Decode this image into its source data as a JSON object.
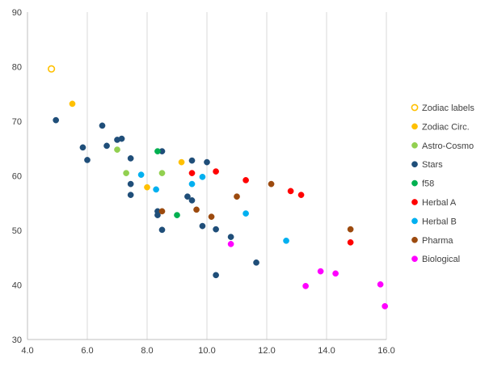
{
  "chart_data": {
    "type": "scatter",
    "title": "",
    "xlabel": "",
    "ylabel": "",
    "xlim": [
      4.0,
      16.0
    ],
    "ylim": [
      30,
      90
    ],
    "xticks": [
      "4.0",
      "6.0",
      "8.0",
      "10.0",
      "12.0",
      "14.0",
      "16.0"
    ],
    "yticks": [
      "30",
      "40",
      "50",
      "60",
      "70",
      "80",
      "90"
    ],
    "grid": "vertical gridlines",
    "legend_position": "right",
    "series": [
      {
        "name": "Zodiac labels",
        "color": "#FFC000",
        "marker": "hollow-circle",
        "points": [
          [
            4.8,
            79.6
          ]
        ]
      },
      {
        "name": "Zodiac Circ.",
        "color": "#FFC000",
        "marker": "circle",
        "points": [
          [
            5.5,
            73.2
          ],
          [
            8.0,
            57.9
          ],
          [
            9.15,
            62.5
          ]
        ]
      },
      {
        "name": "Astro-Cosmo",
        "color": "#92D050",
        "marker": "circle",
        "points": [
          [
            7.0,
            64.8
          ],
          [
            7.3,
            60.5
          ],
          [
            8.5,
            60.5
          ]
        ]
      },
      {
        "name": "Stars",
        "color": "#1F4E79",
        "marker": "circle",
        "points": [
          [
            4.95,
            70.2
          ],
          [
            5.85,
            65.2
          ],
          [
            6.0,
            62.9
          ],
          [
            6.5,
            69.2
          ],
          [
            6.65,
            65.5
          ],
          [
            7.0,
            66.6
          ],
          [
            7.15,
            66.8
          ],
          [
            7.45,
            63.2
          ],
          [
            7.45,
            58.5
          ],
          [
            7.45,
            56.5
          ],
          [
            8.35,
            53.5
          ],
          [
            8.35,
            52.8
          ],
          [
            8.5,
            64.5
          ],
          [
            8.5,
            50.1
          ],
          [
            9.35,
            56.2
          ],
          [
            9.5,
            62.8
          ],
          [
            9.5,
            55.5
          ],
          [
            9.85,
            50.8
          ],
          [
            10.0,
            62.5
          ],
          [
            10.3,
            50.2
          ],
          [
            10.3,
            41.8
          ],
          [
            10.8,
            48.8
          ],
          [
            11.65,
            44.1
          ]
        ]
      },
      {
        "name": "f58",
        "color": "#00B050",
        "marker": "circle",
        "points": [
          [
            8.35,
            64.5
          ],
          [
            9.0,
            52.8
          ]
        ]
      },
      {
        "name": "Herbal A",
        "color": "#FF0000",
        "marker": "circle",
        "points": [
          [
            9.5,
            60.5
          ],
          [
            10.3,
            60.8
          ],
          [
            11.3,
            59.2
          ],
          [
            12.8,
            57.2
          ],
          [
            13.15,
            56.5
          ],
          [
            14.8,
            47.8
          ]
        ]
      },
      {
        "name": "Herbal B",
        "color": "#00B0F0",
        "marker": "circle",
        "points": [
          [
            7.8,
            60.2
          ],
          [
            8.3,
            57.5
          ],
          [
            9.5,
            58.5
          ],
          [
            9.85,
            59.8
          ],
          [
            11.3,
            53.1
          ],
          [
            12.65,
            48.1
          ]
        ]
      },
      {
        "name": "Pharma",
        "color": "#9C4A0E",
        "marker": "circle",
        "points": [
          [
            8.5,
            53.5
          ],
          [
            9.65,
            53.8
          ],
          [
            10.15,
            52.5
          ],
          [
            11.0,
            56.2
          ],
          [
            12.15,
            58.5
          ],
          [
            14.8,
            50.2
          ]
        ]
      },
      {
        "name": "Biological",
        "color": "#FF00FF",
        "marker": "circle",
        "points": [
          [
            10.8,
            47.5
          ],
          [
            13.3,
            39.8
          ],
          [
            13.8,
            42.5
          ],
          [
            14.3,
            42.1
          ],
          [
            15.8,
            40.1
          ],
          [
            15.95,
            36.1
          ]
        ]
      }
    ]
  }
}
